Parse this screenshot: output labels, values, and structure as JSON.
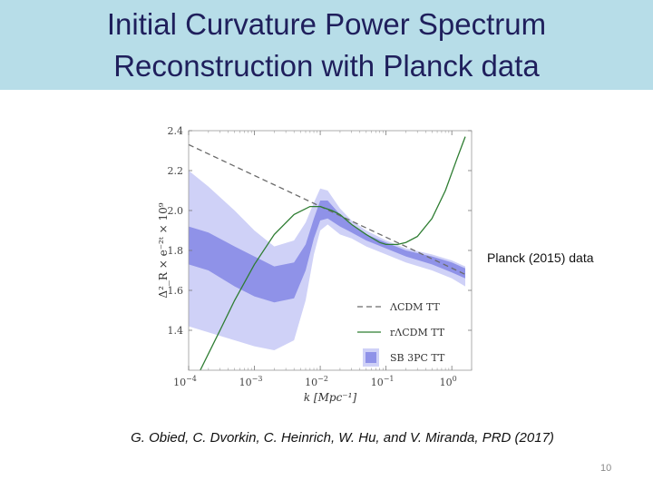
{
  "slide": {
    "title_line1": "Initial Curvature Power Spectrum",
    "title_line2": "Reconstruction with Planck data",
    "side_note": "Planck (2015) data",
    "citation": "G. Obied, C. Dvorkin, C. Heinrich, W. Hu, and V. Miranda, PRD  (2017)",
    "page_number": "10"
  },
  "chart_data": {
    "type": "line",
    "xscale": "log",
    "xlim": [
      0.0001,
      2
    ],
    "ylim": [
      1.2,
      2.4
    ],
    "xlabel": "k [Mpc⁻¹]",
    "ylabel": "Δ²_R × e⁻²ᵗ × 10⁹",
    "x_ticks": [
      {
        "value": 0.0001,
        "base": "10",
        "exp": "−4"
      },
      {
        "value": 0.001,
        "base": "10",
        "exp": "−3"
      },
      {
        "value": 0.01,
        "base": "10",
        "exp": "−2"
      },
      {
        "value": 0.1,
        "base": "10",
        "exp": "−1"
      },
      {
        "value": 1,
        "base": "10",
        "exp": "0"
      }
    ],
    "y_ticks": [
      {
        "value": 1.4,
        "label": "1.4"
      },
      {
        "value": 1.6,
        "label": "1.6"
      },
      {
        "value": 1.8,
        "label": "1.8"
      },
      {
        "value": 2.0,
        "label": "2.0"
      },
      {
        "value": 2.2,
        "label": "2.2"
      },
      {
        "value": 2.4,
        "label": "2.4"
      }
    ],
    "legend_position": "bottom-right",
    "bands": [
      {
        "name": "SB 3PC TT",
        "level": "outer",
        "color": "#cfd1f7",
        "x": [
          0.0001,
          0.0002,
          0.0005,
          0.001,
          0.002,
          0.004,
          0.006,
          0.008,
          0.01,
          0.013,
          0.02,
          0.03,
          0.05,
          0.1,
          0.2,
          0.5,
          1.0,
          1.6
        ],
        "lower": [
          1.42,
          1.39,
          1.35,
          1.32,
          1.3,
          1.35,
          1.55,
          1.78,
          1.9,
          1.93,
          1.88,
          1.86,
          1.82,
          1.78,
          1.74,
          1.7,
          1.66,
          1.62
        ],
        "upper": [
          2.2,
          2.12,
          2.0,
          1.9,
          1.82,
          1.85,
          1.94,
          2.04,
          2.11,
          2.1,
          2.01,
          1.95,
          1.9,
          1.85,
          1.81,
          1.78,
          1.75,
          1.72
        ]
      },
      {
        "name": "SB 3PC TT",
        "level": "inner",
        "color": "#8f92e8",
        "x": [
          0.0001,
          0.0002,
          0.0005,
          0.001,
          0.002,
          0.004,
          0.006,
          0.008,
          0.01,
          0.013,
          0.02,
          0.03,
          0.05,
          0.1,
          0.2,
          0.5,
          1.0,
          1.6
        ],
        "lower": [
          1.73,
          1.7,
          1.62,
          1.57,
          1.54,
          1.56,
          1.7,
          1.86,
          1.95,
          1.96,
          1.92,
          1.89,
          1.85,
          1.81,
          1.77,
          1.73,
          1.69,
          1.66
        ],
        "upper": [
          1.92,
          1.89,
          1.82,
          1.77,
          1.72,
          1.74,
          1.83,
          1.96,
          2.05,
          2.05,
          1.98,
          1.93,
          1.88,
          1.84,
          1.8,
          1.77,
          1.74,
          1.71
        ]
      }
    ],
    "series": [
      {
        "name": "ΛCDM TT",
        "style": "dashed",
        "color": "#6b6b6b",
        "x": [
          0.0001,
          1.6
        ],
        "y": [
          2.33,
          1.68
        ]
      },
      {
        "name": "rΛCDM TT",
        "style": "solid",
        "color": "#2e7d32",
        "x": [
          0.00015,
          0.0003,
          0.0005,
          0.001,
          0.002,
          0.004,
          0.007,
          0.01,
          0.015,
          0.02,
          0.03,
          0.05,
          0.08,
          0.1,
          0.15,
          0.2,
          0.3,
          0.5,
          0.8,
          1.2,
          1.6
        ],
        "y": [
          1.2,
          1.4,
          1.55,
          1.73,
          1.88,
          1.98,
          2.02,
          2.02,
          2.0,
          1.98,
          1.93,
          1.88,
          1.84,
          1.83,
          1.83,
          1.84,
          1.87,
          1.96,
          2.1,
          2.26,
          2.37
        ]
      }
    ],
    "legend": [
      {
        "label": "ΛCDM TT",
        "kind": "dashed",
        "color": "#6b6b6b"
      },
      {
        "label": "rΛCDM TT",
        "kind": "solid",
        "color": "#2e7d32"
      },
      {
        "label": "SB 3PC TT",
        "kind": "band",
        "color": "#8f92e8",
        "color2": "#cfd1f7"
      }
    ]
  }
}
